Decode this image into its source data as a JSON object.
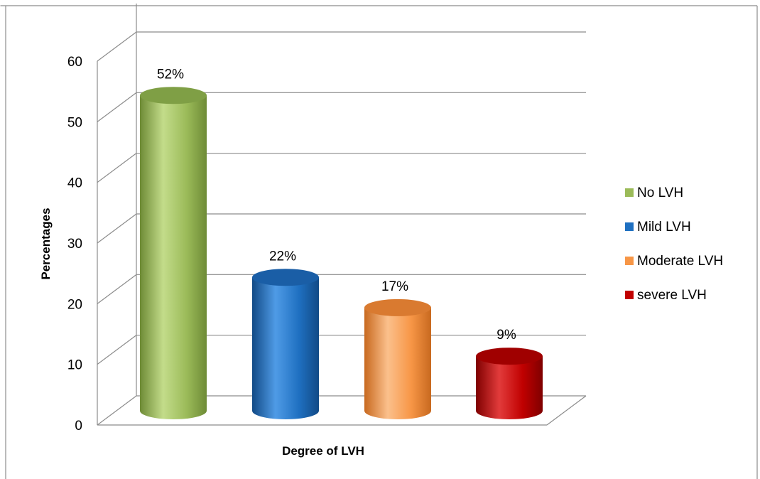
{
  "chart_data": {
    "type": "bar",
    "style": "3d-cylinder",
    "categories": [
      "No LVH",
      "Mild LVH",
      "Moderate LVH",
      "severe LVH"
    ],
    "values": [
      52,
      22,
      17,
      9
    ],
    "data_labels": [
      "52%",
      "22%",
      "17%",
      "9%"
    ],
    "xlabel": "Degree of LVH",
    "ylabel": "Percentages",
    "ylim": [
      0,
      60
    ],
    "yticks": [
      0,
      10,
      20,
      30,
      40,
      50,
      60
    ],
    "grid": true,
    "legend": {
      "position": "right",
      "entries": [
        {
          "label": "No LVH",
          "color": "#9bbb59"
        },
        {
          "label": "Mild LVH",
          "color": "#1f70c1"
        },
        {
          "label": "Moderate LVH",
          "color": "#f79646"
        },
        {
          "label": "severe LVH",
          "color": "#c00000"
        }
      ]
    },
    "colors": {
      "No LVH": {
        "base": "#9bbb59",
        "light": "#c3dc8a",
        "dark": "#6e8b36",
        "top": "#7f9f45"
      },
      "Mild LVH": {
        "base": "#1f70c1",
        "light": "#4f9be6",
        "dark": "#124a86",
        "top": "#1a5ea6"
      },
      "Moderate LVH": {
        "base": "#f79646",
        "light": "#fbc08c",
        "dark": "#c8691f",
        "top": "#d97a30"
      },
      "severe LVH": {
        "base": "#c00000",
        "light": "#e23b3b",
        "dark": "#7f0000",
        "top": "#a00000"
      }
    }
  }
}
